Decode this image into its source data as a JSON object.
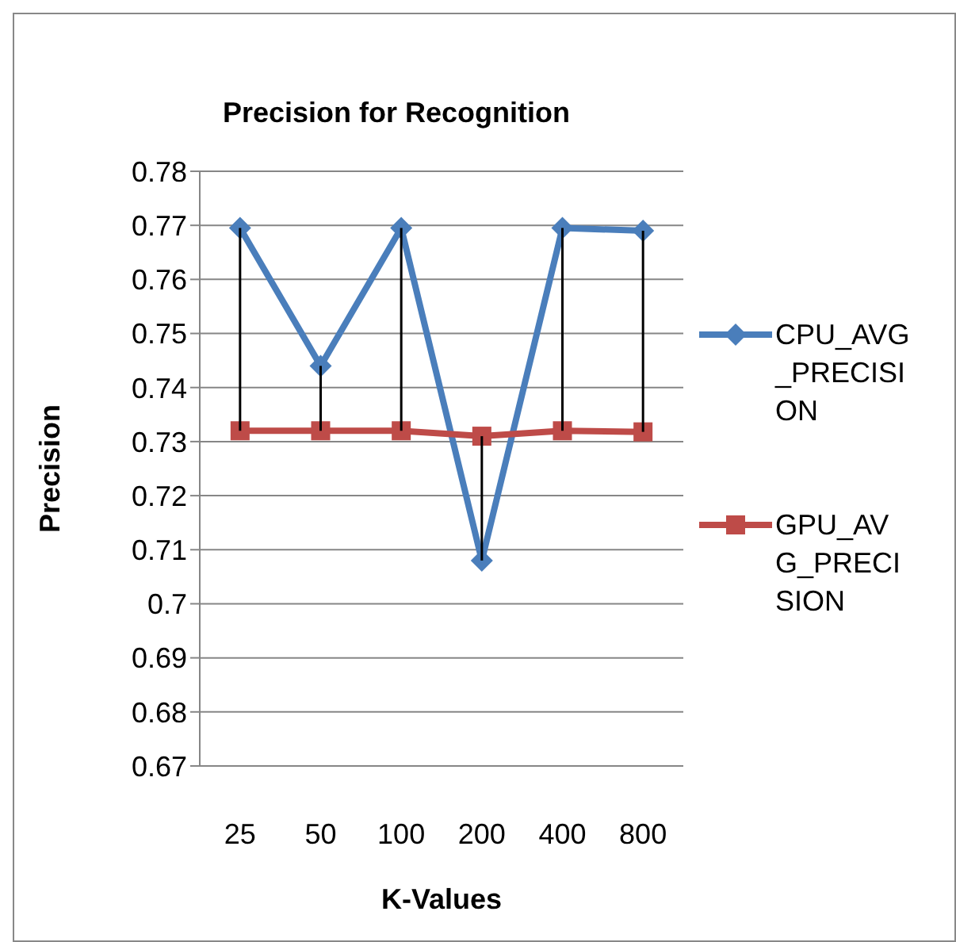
{
  "chart_data": {
    "type": "line",
    "title": "Precision for Recognition",
    "xlabel": "K-Values",
    "ylabel": "Precision",
    "categories": [
      "25",
      "50",
      "100",
      "200",
      "400",
      "800"
    ],
    "series": [
      {
        "name": "CPU_AVG_PRECISION",
        "color": "#4a7ebb",
        "marker": "diamond",
        "values": [
          0.7695,
          0.744,
          0.7695,
          0.708,
          0.7695,
          0.769
        ]
      },
      {
        "name": "GPU_AVG_PRECISION",
        "color": "#be4b48",
        "marker": "square",
        "values": [
          0.732,
          0.732,
          0.732,
          0.731,
          0.732,
          0.7318
        ]
      }
    ],
    "ylim": [
      0.67,
      0.78
    ],
    "yticks": [
      0.67,
      0.68,
      0.69,
      0.7,
      0.71,
      0.72,
      0.73,
      0.74,
      0.75,
      0.76,
      0.77,
      0.78
    ],
    "grid": "y",
    "legend": "right"
  }
}
